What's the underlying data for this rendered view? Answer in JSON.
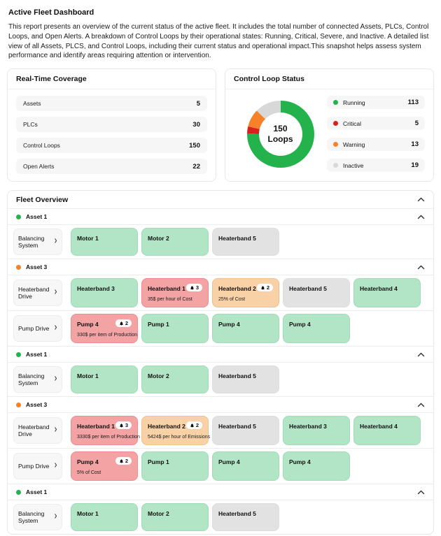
{
  "page": {
    "title": "Active Fleet Dashboard",
    "description": "This report presents an overview of the current status of the active fleet. It includes the total number of connected Assets, PLCs, Control Loops, and Open Alerts. A breakdown of Control Loops by their operational states: Running, Critical, Severe, and Inactive. A detailed list view of all Assets, PLCS, and Control Loops, including their current status and operational impact.This snapshot helps assess system performance and identify areas requiring attention or intervention."
  },
  "coverage": {
    "title": "Real-Time Coverage",
    "rows": [
      {
        "label": "Assets",
        "value": "5"
      },
      {
        "label": "PLCs",
        "value": "30"
      },
      {
        "label": "Control Loops",
        "value": "150"
      },
      {
        "label": "Open Alerts",
        "value": "22"
      }
    ]
  },
  "loop_status": {
    "title": "Control Loop Status",
    "center_value": "150",
    "center_label": "Loops",
    "legend": [
      {
        "label": "Running",
        "value": "113",
        "color": "#24b24c"
      },
      {
        "label": "Critical",
        "value": "5",
        "color": "#d6221c"
      },
      {
        "label": "Warning",
        "value": "13",
        "color": "#f6812b"
      },
      {
        "label": "Inactive",
        "value": "19",
        "color": "#d8d8d8"
      }
    ]
  },
  "chart_data": {
    "type": "pie",
    "donut": true,
    "title": "Control Loop Status",
    "center_label": "150 Loops",
    "categories": [
      "Running",
      "Critical",
      "Warning",
      "Inactive"
    ],
    "values": [
      113,
      5,
      13,
      19
    ],
    "colors": [
      "#24b24c",
      "#d6221c",
      "#f6812b",
      "#d8d8d8"
    ],
    "total": 150,
    "legend_position": "right",
    "start_angle_deg": 0,
    "direction": "clockwise"
  },
  "fleet": {
    "title": "Fleet Overview",
    "groups": [
      {
        "asset": "Asset 1",
        "dot_color": "#24b24c",
        "rows": [
          {
            "plc": "Balancing System",
            "tiles": [
              {
                "name": "Motor 1",
                "state": "ok"
              },
              {
                "name": "Motor 2",
                "state": "ok"
              },
              {
                "name": "Heaterband 5",
                "state": "inactive"
              }
            ]
          }
        ]
      },
      {
        "asset": "Asset 3",
        "dot_color": "#f6812b",
        "rows": [
          {
            "plc": "Heaterband Drive",
            "tiles": [
              {
                "name": "Heaterband 3",
                "state": "ok"
              },
              {
                "name": "Heaterband 1",
                "state": "critical",
                "alerts": "3",
                "subtitle": "35$ per hour of Cost"
              },
              {
                "name": "Heaterband 2",
                "state": "warning",
                "alerts": "2",
                "subtitle": "25% of Cost"
              },
              {
                "name": "Heaterband 5",
                "state": "inactive"
              },
              {
                "name": "Heaterband 4",
                "state": "ok"
              }
            ]
          },
          {
            "plc": "Pump Drive",
            "tiles": [
              {
                "name": "Pump 4",
                "state": "critical",
                "alerts": "2",
                "subtitle": "330$ per item of Production"
              },
              {
                "name": "Pump 1",
                "state": "ok"
              },
              {
                "name": "Pump 4",
                "state": "ok"
              },
              {
                "name": "Pump 4",
                "state": "ok"
              }
            ]
          }
        ]
      },
      {
        "asset": "Asset 1",
        "dot_color": "#24b24c",
        "rows": [
          {
            "plc": "Balancing System",
            "tiles": [
              {
                "name": "Motor 1",
                "state": "ok"
              },
              {
                "name": "Motor 2",
                "state": "ok"
              },
              {
                "name": "Heaterband 5",
                "state": "inactive"
              }
            ]
          }
        ]
      },
      {
        "asset": "Asset 3",
        "dot_color": "#f6812b",
        "rows": [
          {
            "plc": "Heaterband Drive",
            "tiles": [
              {
                "name": "Heaterband 1",
                "state": "critical",
                "alerts": "3",
                "subtitle": "3330$ per item of Production"
              },
              {
                "name": "Heaterband 2",
                "state": "warning",
                "alerts": "2",
                "subtitle": "5424$ per hour of Emissions"
              },
              {
                "name": "Heaterband 5",
                "state": "inactive"
              },
              {
                "name": "Heaterband 3",
                "state": "ok"
              },
              {
                "name": "Heaterband 4",
                "state": "ok"
              }
            ]
          },
          {
            "plc": "Pump Drive",
            "tiles": [
              {
                "name": "Pump 4",
                "state": "critical",
                "alerts": "2",
                "subtitle": "5% of Cost"
              },
              {
                "name": "Pump 1",
                "state": "ok"
              },
              {
                "name": "Pump 4",
                "state": "ok"
              },
              {
                "name": "Pump 4",
                "state": "ok"
              }
            ]
          }
        ]
      },
      {
        "asset": "Asset 1",
        "dot_color": "#24b24c",
        "rows": [
          {
            "plc": "Balancing System",
            "tiles": [
              {
                "name": "Motor 1",
                "state": "ok"
              },
              {
                "name": "Motor 2",
                "state": "ok"
              },
              {
                "name": "Heaterband 5",
                "state": "inactive"
              }
            ]
          }
        ]
      }
    ]
  }
}
